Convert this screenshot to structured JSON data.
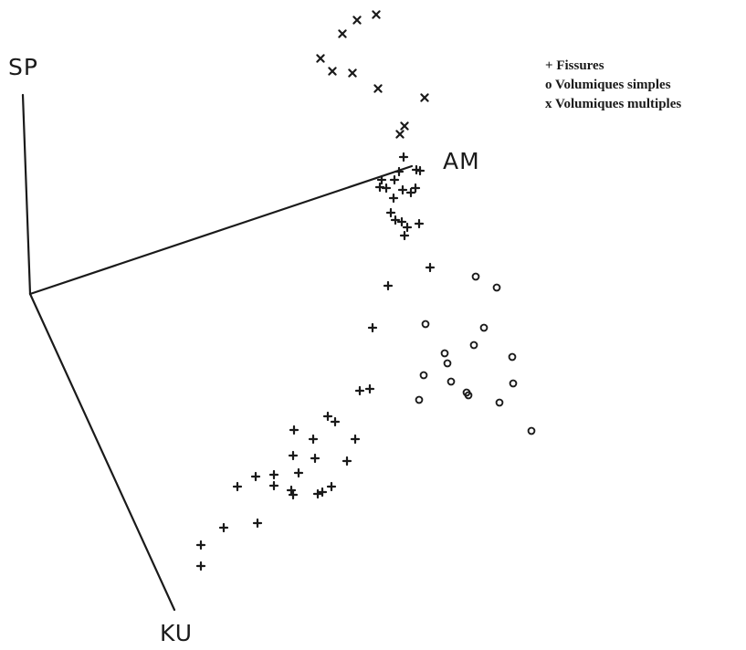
{
  "chart_data": {
    "type": "scatter",
    "projection": "3d",
    "axes": {
      "SP": "SP",
      "AM": "AM",
      "KU": "KU"
    },
    "legend_position": "top-right",
    "legend": [
      {
        "symbol": "+",
        "label": "Fissures"
      },
      {
        "symbol": "o",
        "label": "Volumiques simples"
      },
      {
        "symbol": "x",
        "label": "Volumiques multiples"
      }
    ],
    "series": [
      {
        "name": "Fissures",
        "marker": "+",
        "points": [
          [
            442,
            172
          ],
          [
            456,
            186
          ],
          [
            437,
            188
          ],
          [
            460,
            187
          ],
          [
            418,
            197
          ],
          [
            432,
            197
          ],
          [
            455,
            206
          ],
          [
            416,
            205
          ],
          [
            423,
            206
          ],
          [
            441,
            208
          ],
          [
            431,
            217
          ],
          [
            450,
            211
          ],
          [
            428,
            233
          ],
          [
            433,
            241
          ],
          [
            440,
            243
          ],
          [
            459,
            245
          ],
          [
            446,
            249
          ],
          [
            443,
            258
          ],
          [
            471,
            293
          ],
          [
            425,
            313
          ],
          [
            408,
            359
          ],
          [
            394,
            428
          ],
          [
            405,
            426
          ],
          [
            359,
            456
          ],
          [
            367,
            462
          ],
          [
            322,
            471
          ],
          [
            389,
            481
          ],
          [
            343,
            481
          ],
          [
            321,
            499
          ],
          [
            380,
            505
          ],
          [
            345,
            502
          ],
          [
            300,
            520
          ],
          [
            280,
            522
          ],
          [
            327,
            518
          ],
          [
            260,
            533
          ],
          [
            300,
            532
          ],
          [
            363,
            533
          ],
          [
            319,
            537
          ],
          [
            321,
            542
          ],
          [
            353,
            539
          ],
          [
            348,
            541
          ],
          [
            282,
            573
          ],
          [
            245,
            578
          ],
          [
            220,
            597
          ],
          [
            220,
            620
          ]
        ]
      },
      {
        "name": "Volumiques simples",
        "marker": "o",
        "points": [
          [
            521,
            303
          ],
          [
            544,
            315
          ],
          [
            466,
            355
          ],
          [
            530,
            359
          ],
          [
            519,
            378
          ],
          [
            487,
            387
          ],
          [
            561,
            391
          ],
          [
            490,
            398
          ],
          [
            464,
            411
          ],
          [
            562,
            420
          ],
          [
            494,
            418
          ],
          [
            511,
            430
          ],
          [
            513,
            433
          ],
          [
            459,
            438
          ],
          [
            547,
            441
          ],
          [
            582,
            472
          ]
        ]
      },
      {
        "name": "Volumiques multiples",
        "marker": "x",
        "points": [
          [
            412,
            16
          ],
          [
            391,
            22
          ],
          [
            375,
            37
          ],
          [
            351,
            64
          ],
          [
            364,
            78
          ],
          [
            386,
            80
          ],
          [
            414,
            97
          ],
          [
            465,
            107
          ],
          [
            443,
            138
          ],
          [
            438,
            147
          ]
        ]
      }
    ]
  }
}
